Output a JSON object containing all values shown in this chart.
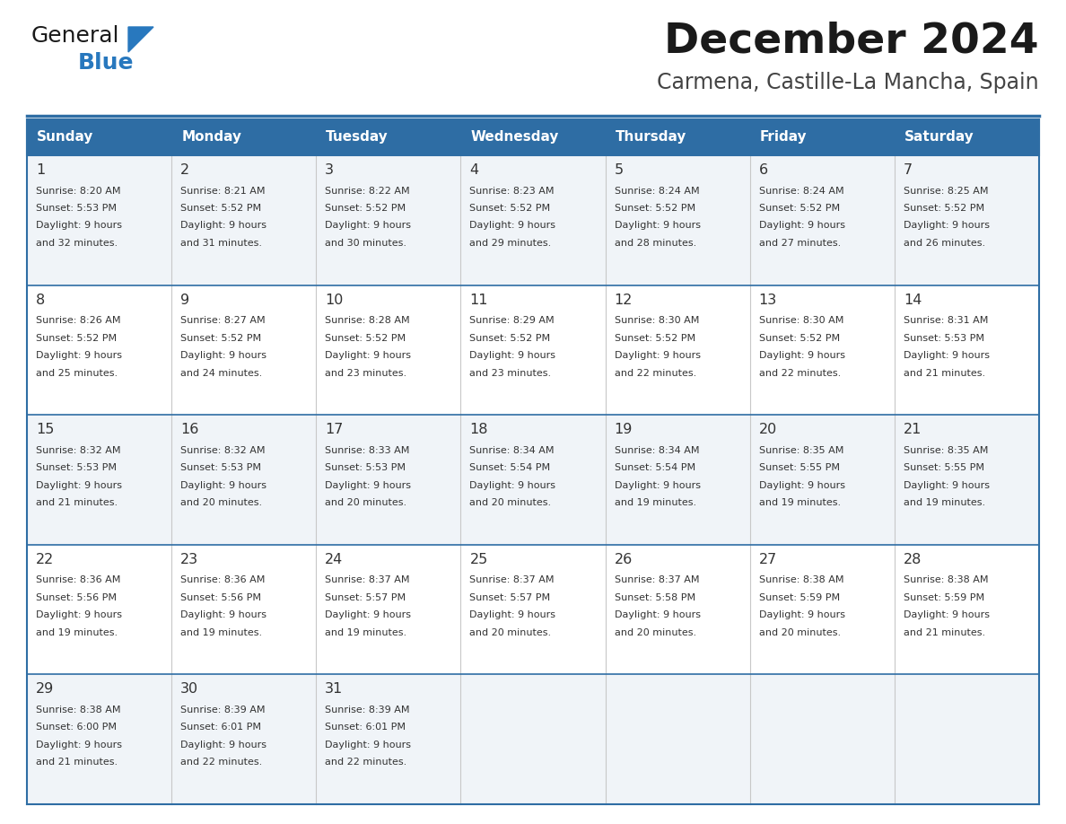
{
  "title": "December 2024",
  "subtitle": "Carmena, Castille-La Mancha, Spain",
  "header_color": "#2E6DA4",
  "header_text_color": "#FFFFFF",
  "cell_bg_odd": "#F0F4F8",
  "cell_bg_even": "#FFFFFF",
  "border_color": "#2E6DA4",
  "text_color": "#333333",
  "days_of_week": [
    "Sunday",
    "Monday",
    "Tuesday",
    "Wednesday",
    "Thursday",
    "Friday",
    "Saturday"
  ],
  "weeks": [
    [
      {
        "day": 1,
        "sunrise": "8:20 AM",
        "sunset": "5:53 PM",
        "daylight_hours": 9,
        "daylight_minutes": 32
      },
      {
        "day": 2,
        "sunrise": "8:21 AM",
        "sunset": "5:52 PM",
        "daylight_hours": 9,
        "daylight_minutes": 31
      },
      {
        "day": 3,
        "sunrise": "8:22 AM",
        "sunset": "5:52 PM",
        "daylight_hours": 9,
        "daylight_minutes": 30
      },
      {
        "day": 4,
        "sunrise": "8:23 AM",
        "sunset": "5:52 PM",
        "daylight_hours": 9,
        "daylight_minutes": 29
      },
      {
        "day": 5,
        "sunrise": "8:24 AM",
        "sunset": "5:52 PM",
        "daylight_hours": 9,
        "daylight_minutes": 28
      },
      {
        "day": 6,
        "sunrise": "8:24 AM",
        "sunset": "5:52 PM",
        "daylight_hours": 9,
        "daylight_minutes": 27
      },
      {
        "day": 7,
        "sunrise": "8:25 AM",
        "sunset": "5:52 PM",
        "daylight_hours": 9,
        "daylight_minutes": 26
      }
    ],
    [
      {
        "day": 8,
        "sunrise": "8:26 AM",
        "sunset": "5:52 PM",
        "daylight_hours": 9,
        "daylight_minutes": 25
      },
      {
        "day": 9,
        "sunrise": "8:27 AM",
        "sunset": "5:52 PM",
        "daylight_hours": 9,
        "daylight_minutes": 24
      },
      {
        "day": 10,
        "sunrise": "8:28 AM",
        "sunset": "5:52 PM",
        "daylight_hours": 9,
        "daylight_minutes": 23
      },
      {
        "day": 11,
        "sunrise": "8:29 AM",
        "sunset": "5:52 PM",
        "daylight_hours": 9,
        "daylight_minutes": 23
      },
      {
        "day": 12,
        "sunrise": "8:30 AM",
        "sunset": "5:52 PM",
        "daylight_hours": 9,
        "daylight_minutes": 22
      },
      {
        "day": 13,
        "sunrise": "8:30 AM",
        "sunset": "5:52 PM",
        "daylight_hours": 9,
        "daylight_minutes": 22
      },
      {
        "day": 14,
        "sunrise": "8:31 AM",
        "sunset": "5:53 PM",
        "daylight_hours": 9,
        "daylight_minutes": 21
      }
    ],
    [
      {
        "day": 15,
        "sunrise": "8:32 AM",
        "sunset": "5:53 PM",
        "daylight_hours": 9,
        "daylight_minutes": 21
      },
      {
        "day": 16,
        "sunrise": "8:32 AM",
        "sunset": "5:53 PM",
        "daylight_hours": 9,
        "daylight_minutes": 20
      },
      {
        "day": 17,
        "sunrise": "8:33 AM",
        "sunset": "5:53 PM",
        "daylight_hours": 9,
        "daylight_minutes": 20
      },
      {
        "day": 18,
        "sunrise": "8:34 AM",
        "sunset": "5:54 PM",
        "daylight_hours": 9,
        "daylight_minutes": 20
      },
      {
        "day": 19,
        "sunrise": "8:34 AM",
        "sunset": "5:54 PM",
        "daylight_hours": 9,
        "daylight_minutes": 19
      },
      {
        "day": 20,
        "sunrise": "8:35 AM",
        "sunset": "5:55 PM",
        "daylight_hours": 9,
        "daylight_minutes": 19
      },
      {
        "day": 21,
        "sunrise": "8:35 AM",
        "sunset": "5:55 PM",
        "daylight_hours": 9,
        "daylight_minutes": 19
      }
    ],
    [
      {
        "day": 22,
        "sunrise": "8:36 AM",
        "sunset": "5:56 PM",
        "daylight_hours": 9,
        "daylight_minutes": 19
      },
      {
        "day": 23,
        "sunrise": "8:36 AM",
        "sunset": "5:56 PM",
        "daylight_hours": 9,
        "daylight_minutes": 19
      },
      {
        "day": 24,
        "sunrise": "8:37 AM",
        "sunset": "5:57 PM",
        "daylight_hours": 9,
        "daylight_minutes": 19
      },
      {
        "day": 25,
        "sunrise": "8:37 AM",
        "sunset": "5:57 PM",
        "daylight_hours": 9,
        "daylight_minutes": 20
      },
      {
        "day": 26,
        "sunrise": "8:37 AM",
        "sunset": "5:58 PM",
        "daylight_hours": 9,
        "daylight_minutes": 20
      },
      {
        "day": 27,
        "sunrise": "8:38 AM",
        "sunset": "5:59 PM",
        "daylight_hours": 9,
        "daylight_minutes": 20
      },
      {
        "day": 28,
        "sunrise": "8:38 AM",
        "sunset": "5:59 PM",
        "daylight_hours": 9,
        "daylight_minutes": 21
      }
    ],
    [
      {
        "day": 29,
        "sunrise": "8:38 AM",
        "sunset": "6:00 PM",
        "daylight_hours": 9,
        "daylight_minutes": 21
      },
      {
        "day": 30,
        "sunrise": "8:39 AM",
        "sunset": "6:01 PM",
        "daylight_hours": 9,
        "daylight_minutes": 22
      },
      {
        "day": 31,
        "sunrise": "8:39 AM",
        "sunset": "6:01 PM",
        "daylight_hours": 9,
        "daylight_minutes": 22
      },
      null,
      null,
      null,
      null
    ]
  ],
  "logo_text_general": "General",
  "logo_text_blue": "Blue",
  "logo_color_general": "#1a1a1a",
  "logo_color_blue": "#2878BE",
  "logo_triangle_color": "#2878BE",
  "fig_width": 11.88,
  "fig_height": 9.18,
  "dpi": 100
}
